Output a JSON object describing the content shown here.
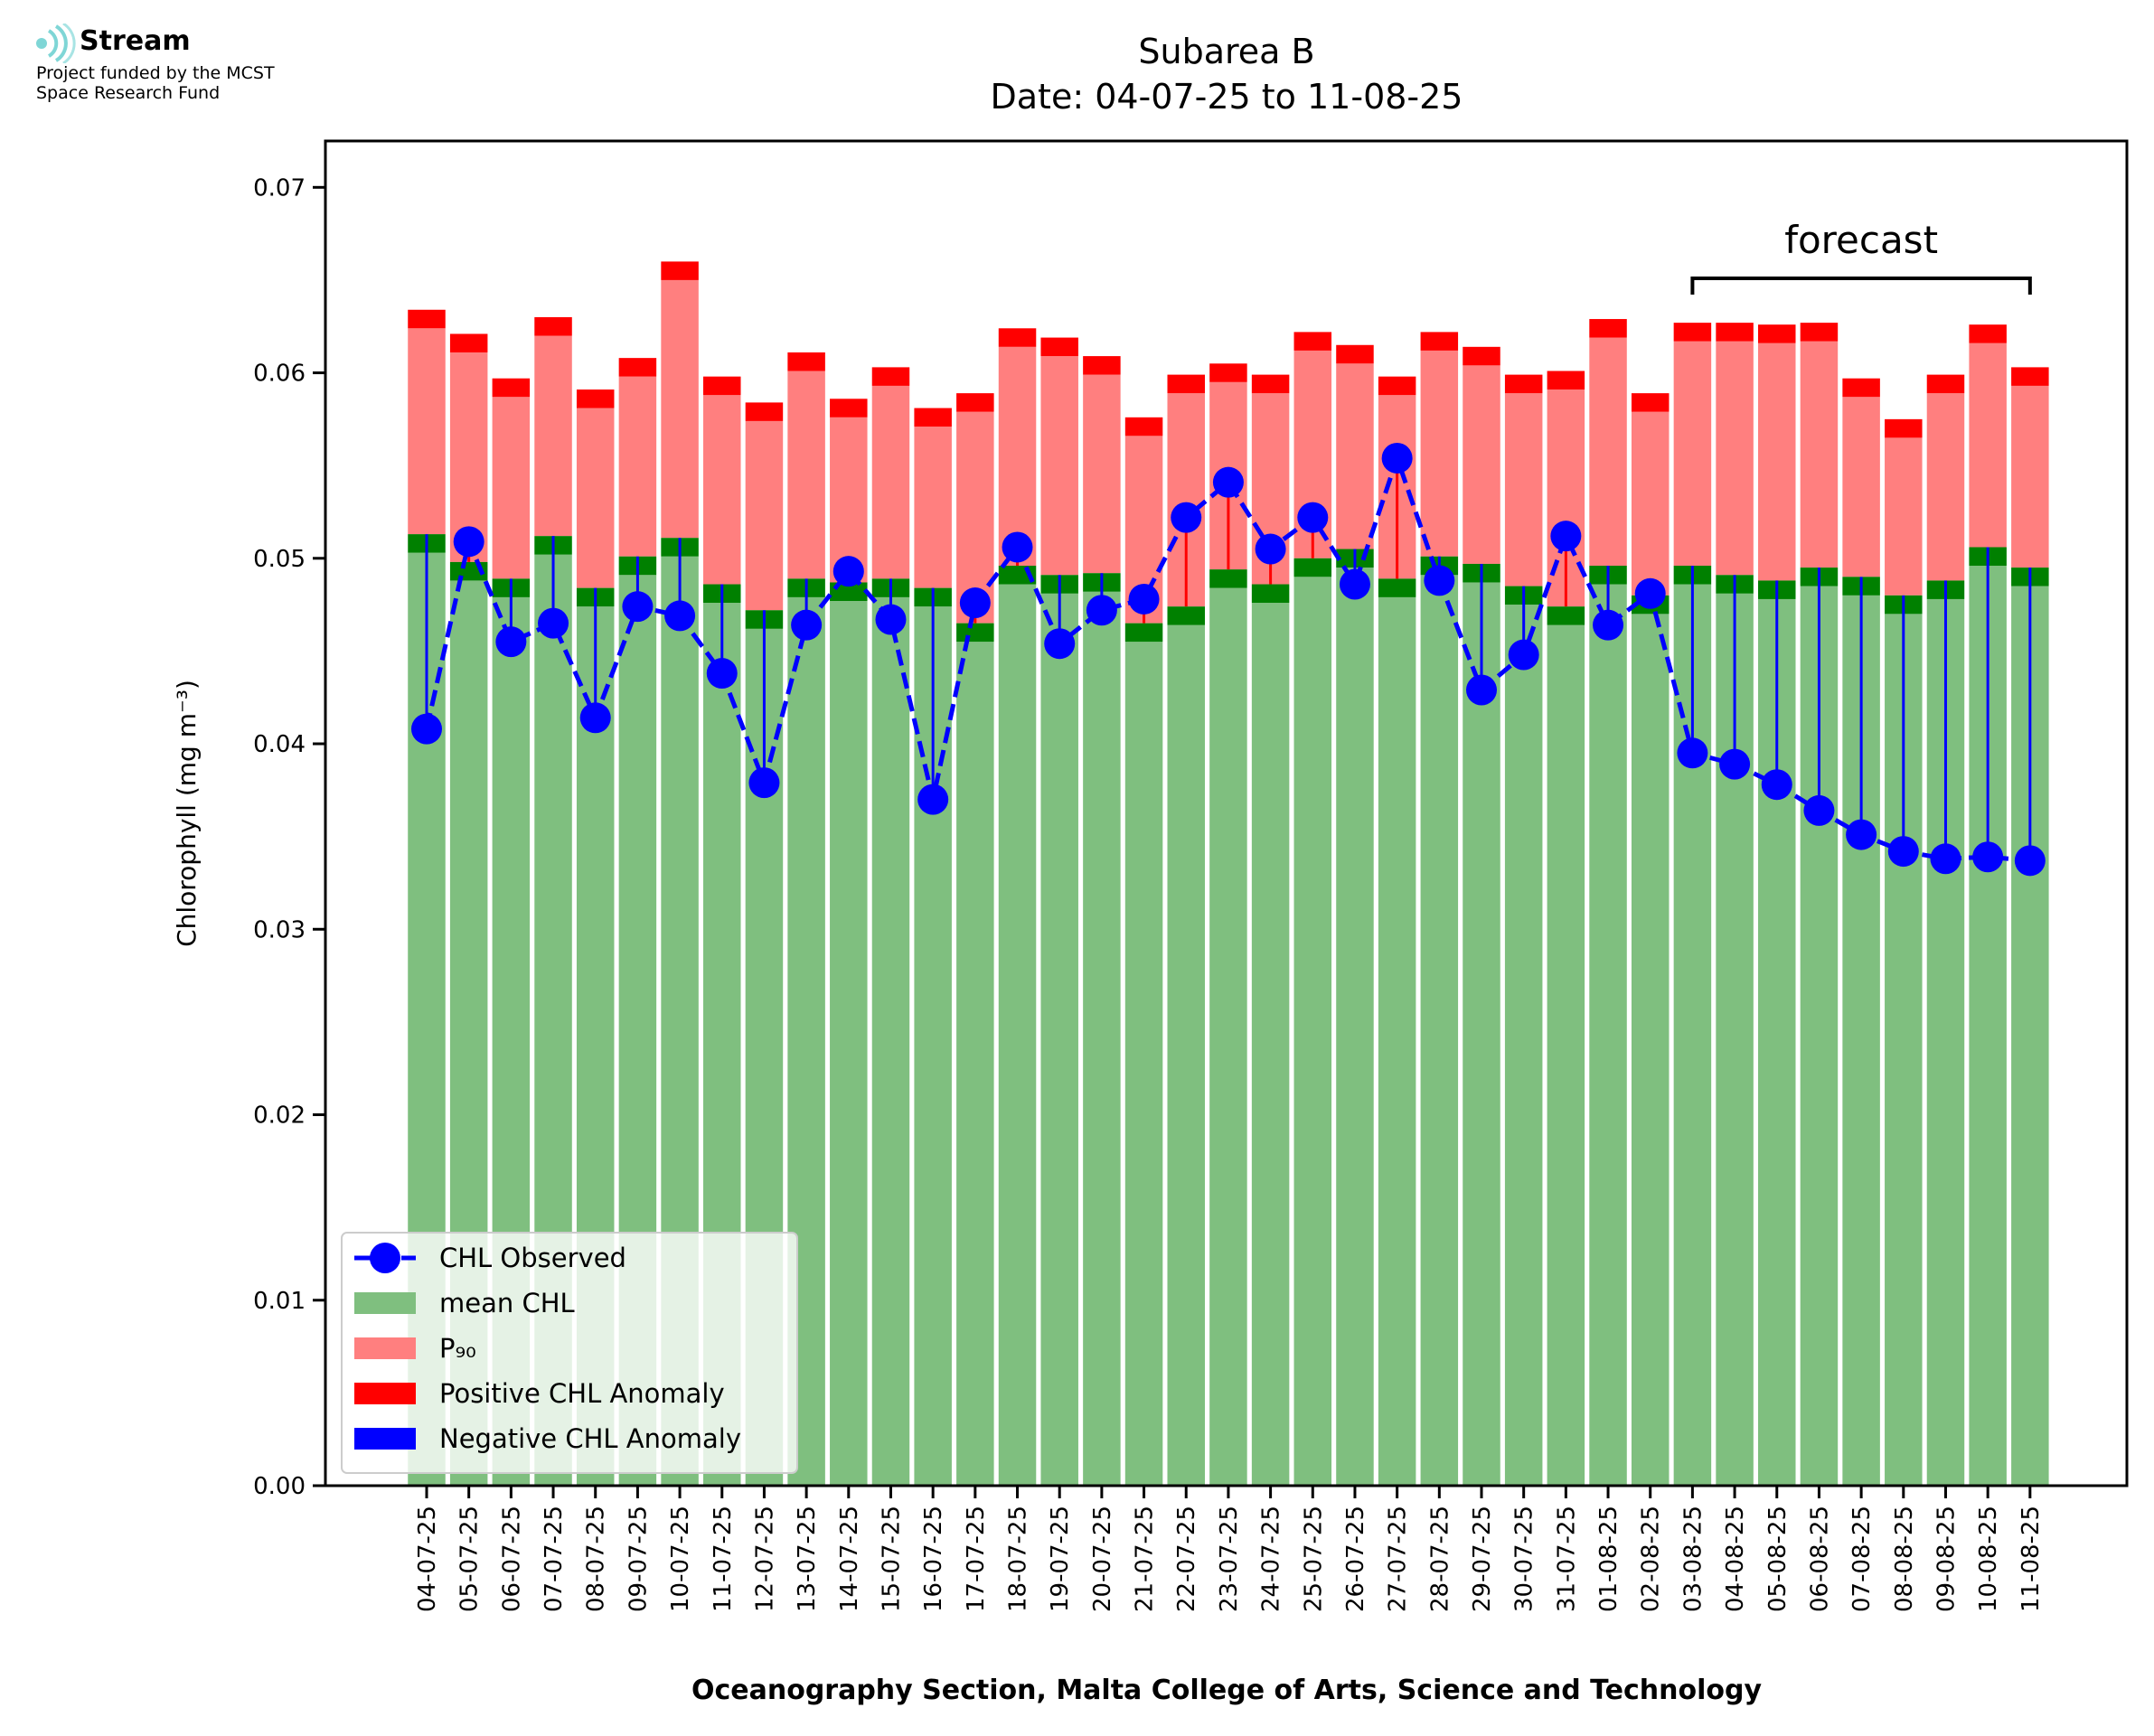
{
  "logo": {
    "name": "Stream",
    "subtitle_line1": "Project funded by the MCST",
    "subtitle_line2": "Space Research Fund"
  },
  "chart_data": {
    "type": "bar",
    "title_line1": "Subarea B",
    "title_line2": "Date: 04-07-25 to 11-08-25",
    "xlabel": "Oceanography Section, Malta College of Arts, Science and Technology",
    "ylabel": "Chlorophyll (mg m⁻³)",
    "ylim": [
      0,
      0.0725
    ],
    "yticks": [
      "0.00",
      "0.01",
      "0.02",
      "0.03",
      "0.04",
      "0.05",
      "0.06",
      "0.07"
    ],
    "annotation": "forecast",
    "forecast_range": [
      "03-08-25",
      "11-08-25"
    ],
    "legend_position": "lower-left",
    "categories": [
      "04-07-25",
      "05-07-25",
      "06-07-25",
      "07-07-25",
      "08-07-25",
      "09-07-25",
      "10-07-25",
      "11-07-25",
      "12-07-25",
      "13-07-25",
      "14-07-25",
      "15-07-25",
      "16-07-25",
      "17-07-25",
      "18-07-25",
      "19-07-25",
      "20-07-25",
      "21-07-25",
      "22-07-25",
      "23-07-25",
      "24-07-25",
      "25-07-25",
      "26-07-25",
      "27-07-25",
      "28-07-25",
      "29-07-25",
      "30-07-25",
      "31-07-25",
      "01-08-25",
      "02-08-25",
      "03-08-25",
      "04-08-25",
      "05-08-25",
      "06-08-25",
      "07-08-25",
      "08-08-25",
      "09-08-25",
      "10-08-25",
      "11-08-25"
    ],
    "series": [
      {
        "name": "CHL Observed",
        "color": "#0000ff",
        "values": [
          0.0408,
          0.0509,
          0.0455,
          0.0465,
          0.0414,
          0.0474,
          0.0469,
          0.0438,
          0.0379,
          0.0464,
          0.0493,
          0.0467,
          0.037,
          0.0476,
          0.0506,
          0.0454,
          0.0472,
          0.0478,
          0.0522,
          0.0541,
          0.0505,
          0.0522,
          0.0486,
          0.0554,
          0.0488,
          0.0429,
          0.0448,
          0.0512,
          0.0464,
          0.0481,
          0.0395,
          0.0389,
          0.0378,
          0.0364,
          0.0351,
          0.0342,
          0.0338,
          0.0339,
          0.0337
        ]
      },
      {
        "name": "mean CHL",
        "color": "#7fbf7f",
        "values": [
          0.0513,
          0.0498,
          0.0489,
          0.0512,
          0.0484,
          0.0501,
          0.0511,
          0.0486,
          0.0472,
          0.0489,
          0.0487,
          0.0489,
          0.0484,
          0.0465,
          0.0496,
          0.0491,
          0.0492,
          0.0465,
          0.0474,
          0.0494,
          0.0486,
          0.05,
          0.0505,
          0.0489,
          0.0501,
          0.0497,
          0.0485,
          0.0474,
          0.0496,
          0.048,
          0.0496,
          0.0491,
          0.0488,
          0.0495,
          0.049,
          0.048,
          0.0488,
          0.0506,
          0.0495
        ]
      },
      {
        "name": "P₉₀",
        "color": "#ff7f7f",
        "values": [
          0.0634,
          0.0621,
          0.0597,
          0.063,
          0.0591,
          0.0608,
          0.066,
          0.0598,
          0.0584,
          0.0611,
          0.0586,
          0.0603,
          0.0581,
          0.0589,
          0.0624,
          0.0619,
          0.0609,
          0.0576,
          0.0599,
          0.0605,
          0.0599,
          0.0622,
          0.0615,
          0.0598,
          0.0622,
          0.0614,
          0.0599,
          0.0601,
          0.0629,
          0.0589,
          0.0627,
          0.0627,
          0.0626,
          0.0627,
          0.0597,
          0.0575,
          0.0599,
          0.0626,
          0.0603
        ]
      },
      {
        "name": "Positive CHL Anomaly",
        "color": "#ff0000"
      },
      {
        "name": "Negative CHL Anomaly",
        "color": "#0000ff"
      }
    ]
  }
}
